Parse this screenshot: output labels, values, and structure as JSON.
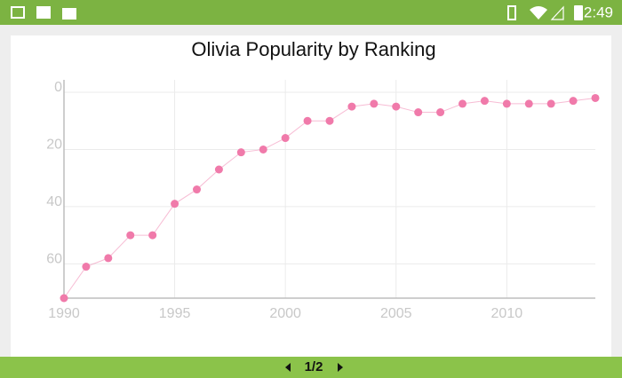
{
  "status_bar": {
    "time": "2:49"
  },
  "chart_data": {
    "type": "line",
    "title": "Olivia Popularity by Ranking",
    "x": [
      1990,
      1991,
      1992,
      1993,
      1994,
      1995,
      1996,
      1997,
      1998,
      1999,
      2000,
      2001,
      2002,
      2003,
      2004,
      2005,
      2006,
      2007,
      2008,
      2009,
      2010,
      2011,
      2012,
      2013,
      2014
    ],
    "series": [
      {
        "color": "#f07aaa",
        "values": [
          72,
          61,
          58,
          50,
          50,
          39,
          34,
          27,
          21,
          20,
          16,
          10,
          10,
          5,
          4,
          5,
          7,
          7,
          4,
          3,
          4,
          4,
          4,
          3,
          2
        ]
      }
    ],
    "xlim": [
      1990,
      2014
    ],
    "xticks": [
      1990,
      1995,
      2000,
      2005,
      2010
    ],
    "ylim": [
      72,
      0
    ],
    "yticks": [
      0,
      20,
      40,
      60
    ],
    "grid": true
  },
  "pager": {
    "label": "1/2"
  }
}
